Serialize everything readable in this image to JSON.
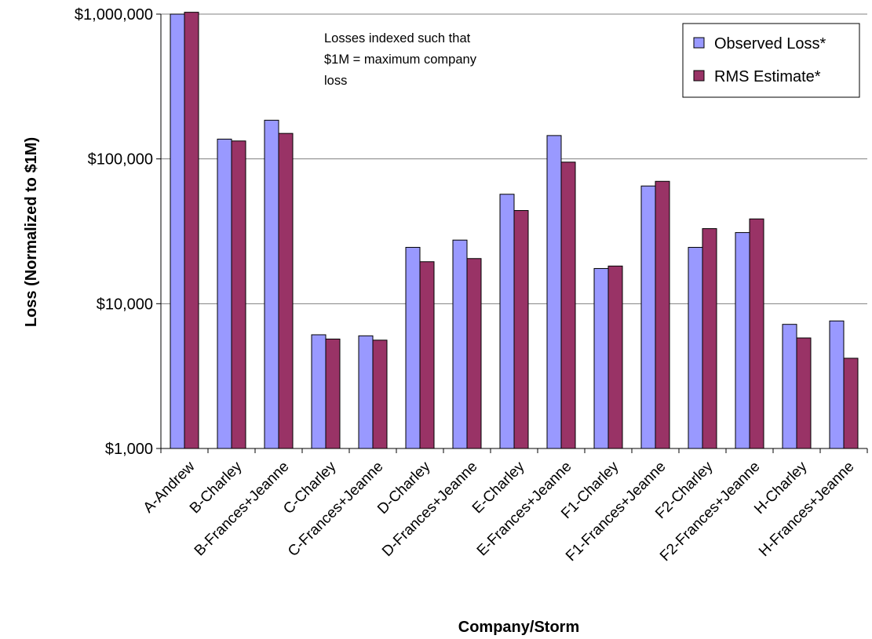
{
  "chart_data": {
    "type": "bar",
    "title": "",
    "xlabel": "Company/Storm",
    "ylabel": "Loss (Normalized to $1M)",
    "yscale": "log",
    "ylim": [
      1000,
      1000000
    ],
    "yticks": [
      1000,
      10000,
      100000,
      1000000
    ],
    "ytick_labels": [
      "$1,000",
      "$10,000",
      "$100,000",
      "$1,000,000"
    ],
    "grid": "horizontal",
    "legend_position": "top-right",
    "annotation": [
      "Losses indexed such that",
      "$1M = maximum company",
      "loss"
    ],
    "categories": [
      "A-Andrew",
      "B-Charley",
      "B-Frances+Jeanne",
      "C-Charley",
      "C-Frances+Jeanne",
      "D-Charley",
      "D-Frances+Jeanne",
      "E-Charley",
      "E-Frances+Jeanne",
      "F1-Charley",
      "F1-Frances+Jeanne",
      "F2-Charley",
      "F2-Frances+Jeanne",
      "H-Charley",
      "H-Frances+Jeanne"
    ],
    "series": [
      {
        "name": "Observed Loss*",
        "color": "#9999ff",
        "values": [
          1000000,
          137000,
          185000,
          6100,
          6000,
          24500,
          27500,
          57000,
          145000,
          17500,
          65000,
          24500,
          31000,
          7200,
          7600
        ]
      },
      {
        "name": "RMS Estimate*",
        "color": "#993366",
        "values": [
          1030000,
          133000,
          150000,
          5700,
          5600,
          19500,
          20500,
          44000,
          95000,
          18200,
          70000,
          33000,
          38500,
          5800,
          4200
        ]
      }
    ]
  }
}
